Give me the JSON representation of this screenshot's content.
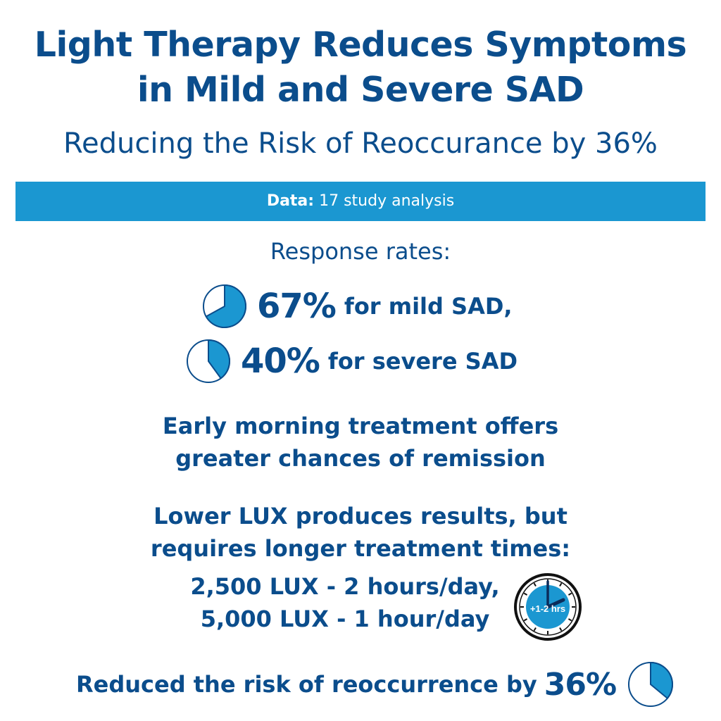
{
  "header": {
    "title_line1": "Light Therapy Reduces Symptoms",
    "title_line2": "in Mild and Severe SAD",
    "subtitle": "Reducing the Risk of Reoccurance by 36%"
  },
  "banner": {
    "label": "Data:",
    "text": " 17 study analysis",
    "color": "#1b97d1"
  },
  "response": {
    "label": "Response rates:",
    "items": [
      {
        "value": "67%",
        "text": "for mild SAD,",
        "fraction": 0.67,
        "icon": "pie-chart-icon"
      },
      {
        "value": "40%",
        "text": "for severe SAD",
        "fraction": 0.4,
        "icon": "pie-chart-icon"
      }
    ]
  },
  "morning": {
    "line1": "Early morning treatment offers",
    "line2": "greater chances of remission"
  },
  "lux": {
    "line1": "Lower LUX produces results, but",
    "line2": "requires longer treatment times:",
    "detail1": "2,500 LUX - 2 hours/day,",
    "detail2": "5,000 LUX - 1 hour/day"
  },
  "clock": {
    "label": "+1-2 hrs",
    "icon": "clock-icon"
  },
  "bottom": {
    "text": "Reduced the risk of reoccurrence by",
    "value": "36%",
    "fraction": 0.36,
    "icon": "pie-chart-icon"
  },
  "colors": {
    "primary": "#0b4d8c",
    "accent": "#1b97d1",
    "background": "#ffffff"
  }
}
